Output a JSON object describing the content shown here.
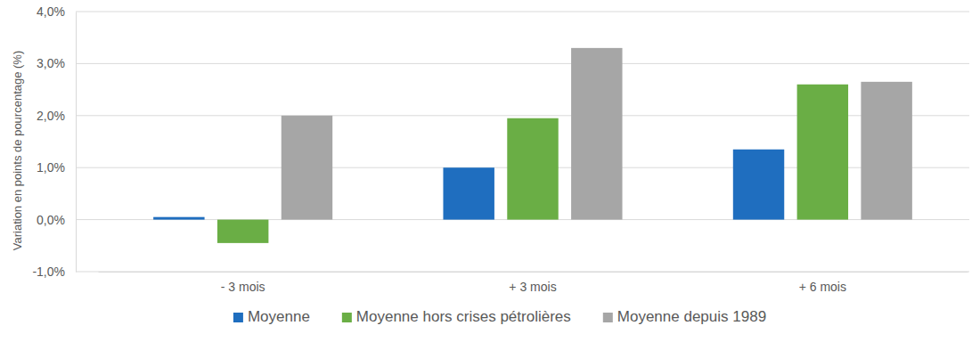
{
  "chart_data": {
    "type": "bar",
    "y_label": "Variation en points de pourcentage (%)",
    "categories": [
      "- 3 mois",
      "+ 3 mois",
      "+ 6 mois"
    ],
    "series": [
      {
        "name": "Moyenne",
        "color": "#1f6ebf",
        "values": [
          0.05,
          1.0,
          1.35
        ]
      },
      {
        "name": "Moyenne hors crises pétrolières",
        "color": "#6aae45",
        "values": [
          -0.45,
          1.95,
          2.6
        ]
      },
      {
        "name": "Moyenne depuis 1989",
        "color": "#a6a6a6",
        "values": [
          2.0,
          3.3,
          2.65
        ]
      }
    ],
    "ylim": [
      -1,
      4
    ],
    "yticks": [
      {
        "value": -1,
        "label": "-1,0%"
      },
      {
        "value": 0,
        "label": "0,0%"
      },
      {
        "value": 1,
        "label": "1,0%"
      },
      {
        "value": 2,
        "label": "2,0%"
      },
      {
        "value": 3,
        "label": "3,0%"
      },
      {
        "value": 4,
        "label": "4,0%"
      }
    ],
    "grid": true,
    "legend": "bottom"
  }
}
